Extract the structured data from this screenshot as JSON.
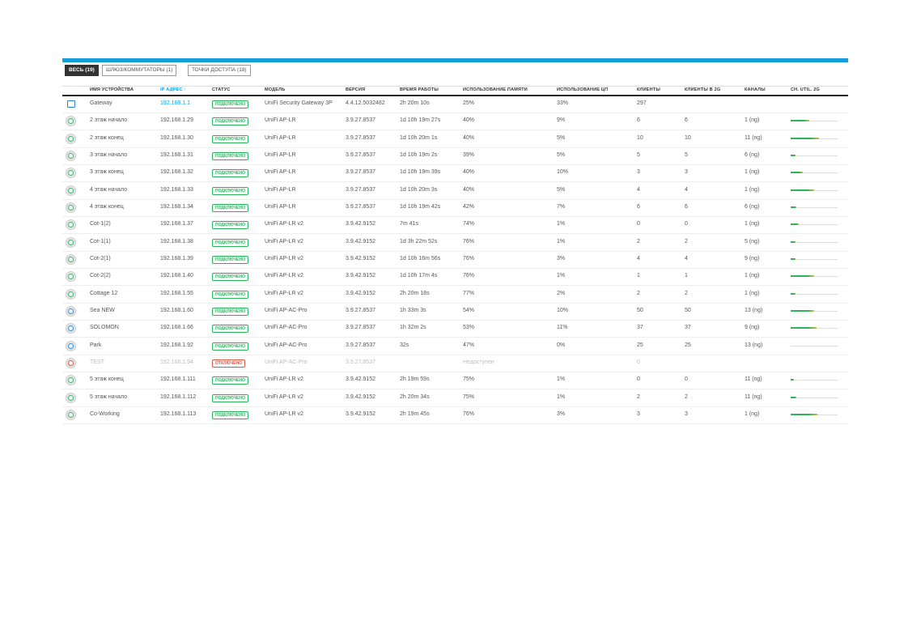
{
  "tabs": [
    "ВЕСЬ (19)",
    "ШЛЮЗ/КОММУТАТОРЫ (1)",
    "ТОЧКИ ДОСТУПА (18)"
  ],
  "table": {
    "header": [
      "ИМЯ УСТРОЙСТВА",
      "IP АДРЕС",
      "СТАТУС",
      "МОДЕЛЬ",
      "ВЕРСИЯ",
      "ВРЕМЯ РАБОТЫ",
      "ИСПОЛЬЗОВАНИЕ ПАМЯТИ",
      "ИСПОЛЬЗОВАНИЕ ЦП",
      "КЛИЕНТЫ",
      "КЛИЕНТЫ В 2G",
      "КАНАЛЫ",
      "CH. UTIL. 2G"
    ],
    "rows": [
      [
        "Gateway",
        "192.168.1.1",
        "ПОДКЛЮЧЕНО",
        "UniFi Security Gateway 3P",
        "4.4.12.5032482",
        "2h 20m 10s",
        "25%",
        "33%",
        "297",
        null,
        null
      ],
      [
        "2 этаж начало",
        "192.168.1.29",
        "ПОДКЛЮЧЕНО",
        "UniFi AP-LR",
        "3.9.27.8537",
        "1d 10h 19m 27s",
        "40%",
        "9%",
        "6",
        "6",
        "1 (ng)"
      ],
      [
        "2 этаж конец",
        "192.168.1.30",
        "ПОДКЛЮЧЕНО",
        "UniFi AP-LR",
        "3.9.27.8537",
        "1d 10h 20m 1s",
        "40%",
        "5%",
        "10",
        "10",
        "11 (ng)"
      ],
      [
        "3 этаж начало",
        "192.168.1.31",
        "ПОДКЛЮЧЕНО",
        "UniFi AP-LR",
        "3.9.27.8537",
        "1d 10h 19m 2s",
        "39%",
        "5%",
        "5",
        "5",
        "6 (ng)"
      ],
      [
        "3 этаж конец",
        "192.168.1.32",
        "ПОДКЛЮЧЕНО",
        "UniFi AP-LR",
        "3.9.27.8537",
        "1d 10h 19m 39s",
        "40%",
        "10%",
        "3",
        "3",
        "1 (ng)"
      ],
      [
        "4 этаж начало",
        "192.168.1.33",
        "ПОДКЛЮЧЕНО",
        "UniFi AP-LR",
        "3.9.27.8537",
        "1d 10h 20m 3s",
        "40%",
        "5%",
        "4",
        "4",
        "1 (ng)"
      ],
      [
        "4 этаж конец",
        "192.168.1.34",
        "ПОДКЛЮЧЕНО",
        "UniFi AP-LR",
        "3.9.27.8537",
        "1d 10h 19m 42s",
        "42%",
        "7%",
        "6",
        "6",
        "6 (ng)"
      ],
      [
        "Cot-1(2)",
        "192.168.1.37",
        "ПОДКЛЮЧЕНО",
        "UniFi AP-LR v2",
        "3.9.42.9152",
        "7m 41s",
        "74%",
        "1%",
        "0",
        "0",
        "1 (ng)"
      ],
      [
        "Cot-1(1)",
        "192.168.1.38",
        "ПОДКЛЮЧЕНО",
        "UniFi AP-LR v2",
        "3.9.42.9152",
        "1d 3h 22m 52s",
        "76%",
        "1%",
        "2",
        "2",
        "5 (ng)"
      ],
      [
        "Cot-2(1)",
        "192.168.1.39",
        "ПОДКЛЮЧЕНО",
        "UniFi AP-LR v2",
        "3.9.42.9152",
        "1d 10h 16m 56s",
        "76%",
        "3%",
        "4",
        "4",
        "9 (ng)"
      ],
      [
        "Cot-2(2)",
        "192.168.1.40",
        "ПОДКЛЮЧЕНО",
        "UniFi AP-LR v2",
        "3.9.42.9152",
        "1d 10h 17m 4s",
        "76%",
        "1%",
        "1",
        "1",
        "1 (ng)"
      ],
      [
        "Cottage 12",
        "192.168.1.55",
        "ПОДКЛЮЧЕНО",
        "UniFi AP-LR v2",
        "3.9.42.9152",
        "2h 20m 18s",
        "77%",
        "2%",
        "2",
        "2",
        "1 (ng)"
      ],
      [
        "Sea NEW",
        "192.168.1.60",
        "ПОДКЛЮЧЕНО",
        "UniFi AP-AC-Pro",
        "3.9.27.8537",
        "1h 33m 3s",
        "54%",
        "10%",
        "50",
        "50",
        "13 (ng)"
      ],
      [
        "SOLOMON",
        "192.168.1.66",
        "ПОДКЛЮЧЕНО",
        "UniFi AP-AC-Pro",
        "3.9.27.8537",
        "1h 32m 2s",
        "53%",
        "11%",
        "37",
        "37",
        "9 (ng)"
      ],
      [
        "Park",
        "192.168.1.92",
        "ПОДКЛЮЧЕНО",
        "UniFi AP-AC-Pro",
        "3.9.27.8537",
        "32s",
        "47%",
        "0%",
        "25",
        "25",
        "13 (ng)"
      ],
      [
        "TEST",
        "192.168.1.94",
        "ОТКЛЮЧЕНО",
        "UniFi AP-AC-Pro",
        "3.9.27.8537",
        null,
        "Недоступен",
        null,
        "0",
        null,
        null
      ],
      [
        "5 этаж конец",
        "192.168.1.111",
        "ПОДКЛЮЧЕНО",
        "UniFi AP-LR v2",
        "3.9.42.9152",
        "2h 19m 59s",
        "75%",
        "1%",
        "0",
        "0",
        "11 (ng)"
      ],
      [
        "5 этаж начало",
        "192.168.1.112",
        "ПОДКЛЮЧЕНО",
        "UniFi AP-LR v2",
        "3.9.42.9152",
        "2h 20m 34s",
        "75%",
        "1%",
        "2",
        "2",
        "11 (ng)"
      ],
      [
        "Co-Working",
        "192.168.1.113",
        "ПОДКЛЮЧЕНО",
        "UniFi AP-LR v2",
        "3.9.42.9152",
        "2h 19m 45s",
        "76%",
        "3%",
        "3",
        "3",
        "1 (ng)"
      ]
    ],
    "ch_util": [
      null,
      40,
      60,
      10,
      25,
      50,
      12,
      17,
      10,
      10,
      50,
      10,
      50,
      55,
      0,
      null,
      7,
      12,
      57
    ]
  }
}
